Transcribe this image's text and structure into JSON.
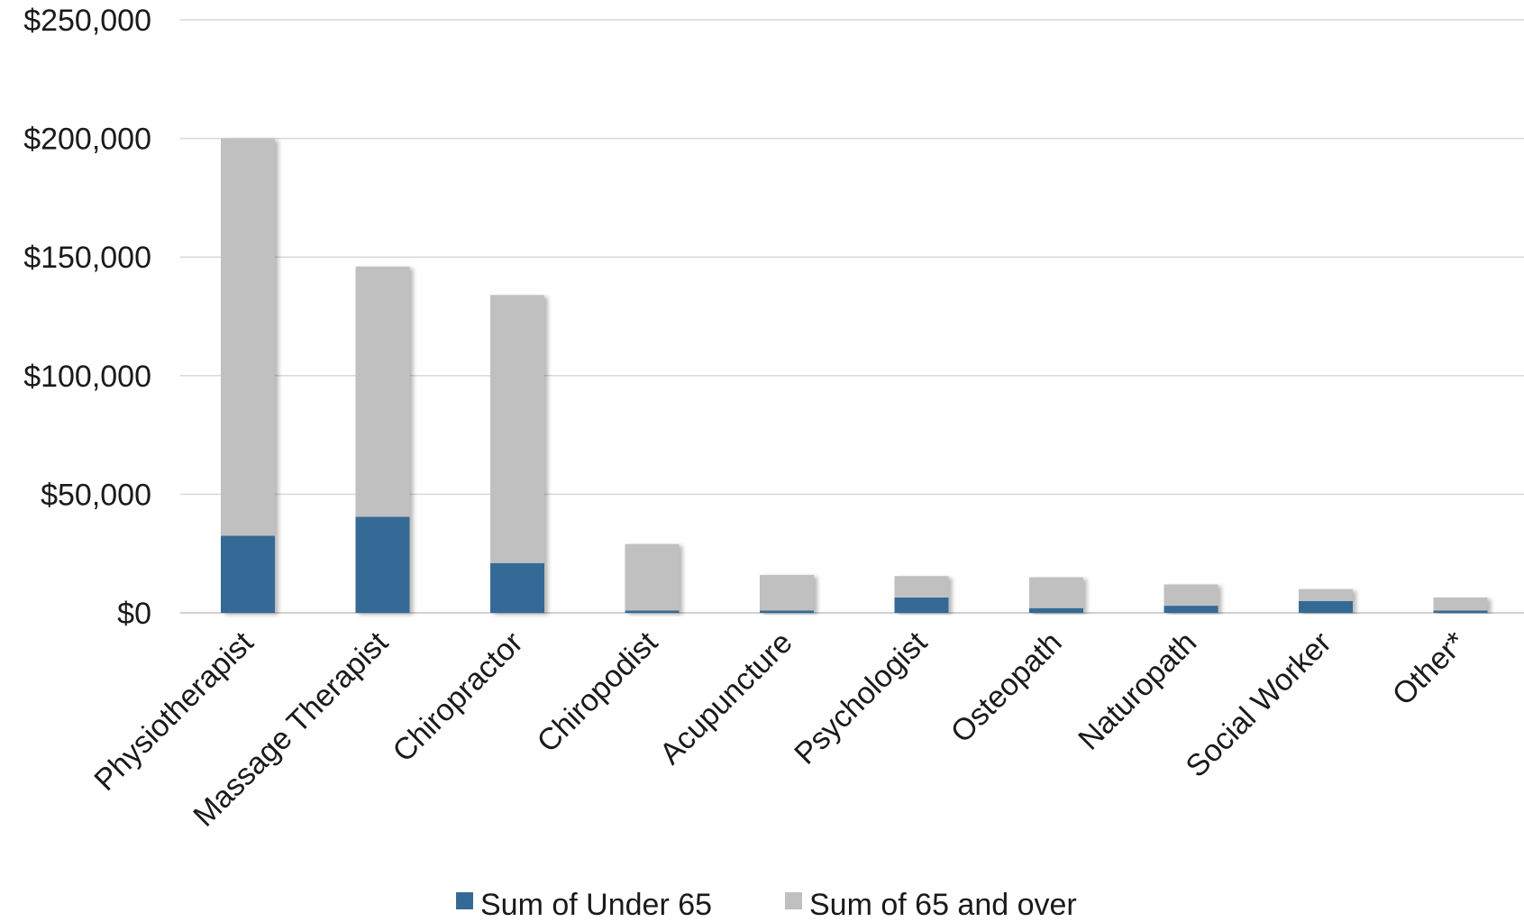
{
  "chart_data": {
    "type": "bar",
    "stacked": true,
    "categories": [
      "Physiotherapist",
      "Massage Therapist",
      "Chiropractor",
      "Chiropodist",
      "Acupuncture",
      "Psychologist",
      "Osteopath",
      "Naturopath",
      "Social Worker",
      "Other*"
    ],
    "series": [
      {
        "name": "Sum of Under 65",
        "color": "#356a96",
        "values": [
          32500,
          40500,
          21000,
          1000,
          1000,
          6500,
          2000,
          3000,
          5000,
          1000
        ]
      },
      {
        "name": "Sum of 65 and over",
        "color": "#c0c0c0",
        "values": [
          167500,
          105500,
          113000,
          28000,
          15000,
          9000,
          13000,
          9000,
          5000,
          5500
        ]
      }
    ],
    "ylim": [
      0,
      250000
    ],
    "yticks": [
      0,
      50000,
      100000,
      150000,
      200000,
      250000
    ],
    "ytick_labels": [
      "$0",
      "$50,000",
      "$100,000",
      "$150,000",
      "$200,000",
      "$250,000"
    ],
    "grid": true,
    "legend_position": "bottom",
    "title": "",
    "xlabel": "",
    "ylabel": ""
  }
}
